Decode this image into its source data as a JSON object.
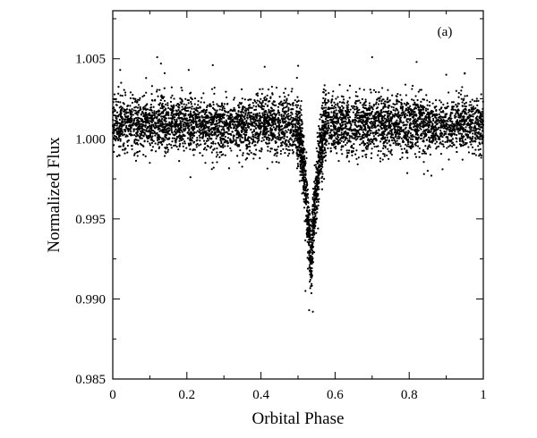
{
  "chart_data": {
    "type": "scatter",
    "title": "",
    "panel_label": "(a)",
    "xlabel": "Orbital Phase",
    "ylabel": "Normalized Flux",
    "xlim": [
      0,
      1
    ],
    "ylim": [
      0.985,
      1.008
    ],
    "x_ticks": [
      0,
      0.2,
      0.4,
      0.6,
      0.8,
      1
    ],
    "x_tick_labels": [
      "0",
      "0.2",
      "0.4",
      "0.6",
      "0.8",
      "1"
    ],
    "y_ticks": [
      0.985,
      0.99,
      0.995,
      1.0,
      1.005
    ],
    "y_tick_labels": [
      "0.985",
      "0.990",
      "0.995",
      "1.000",
      "1.005"
    ],
    "grid": false,
    "legend": "none",
    "marker_color": "#000000",
    "baseline_flux": 1.0009,
    "baseline_scatter": 0.00085,
    "transit": {
      "center_phase": 0.535,
      "depth": 0.0085,
      "width_phase": 0.08,
      "ingress_phase": 0.49,
      "egress_phase": 0.58
    },
    "n_points": 5200,
    "outliers": [
      {
        "x": 0.02,
        "y": 1.0043
      },
      {
        "x": 0.09,
        "y": 1.0038
      },
      {
        "x": 0.12,
        "y": 1.0051
      },
      {
        "x": 0.13,
        "y": 1.0047
      },
      {
        "x": 0.14,
        "y": 1.0041
      },
      {
        "x": 0.205,
        "y": 1.0043
      },
      {
        "x": 0.27,
        "y": 1.0046
      },
      {
        "x": 0.41,
        "y": 1.0045
      },
      {
        "x": 0.7,
        "y": 1.0051
      },
      {
        "x": 0.82,
        "y": 1.0048
      },
      {
        "x": 0.9,
        "y": 1.004
      },
      {
        "x": 0.95,
        "y": 1.0041
      },
      {
        "x": 0.25,
        "y": 0.9985
      },
      {
        "x": 0.52,
        "y": 0.9905
      },
      {
        "x": 0.53,
        "y": 0.9893
      },
      {
        "x": 0.54,
        "y": 0.9892
      },
      {
        "x": 0.84,
        "y": 0.9978
      },
      {
        "x": 0.85,
        "y": 0.998
      },
      {
        "x": 0.86,
        "y": 0.9977
      },
      {
        "x": 0.89,
        "y": 0.9981
      },
      {
        "x": 0.1,
        "y": 0.9985
      }
    ]
  }
}
